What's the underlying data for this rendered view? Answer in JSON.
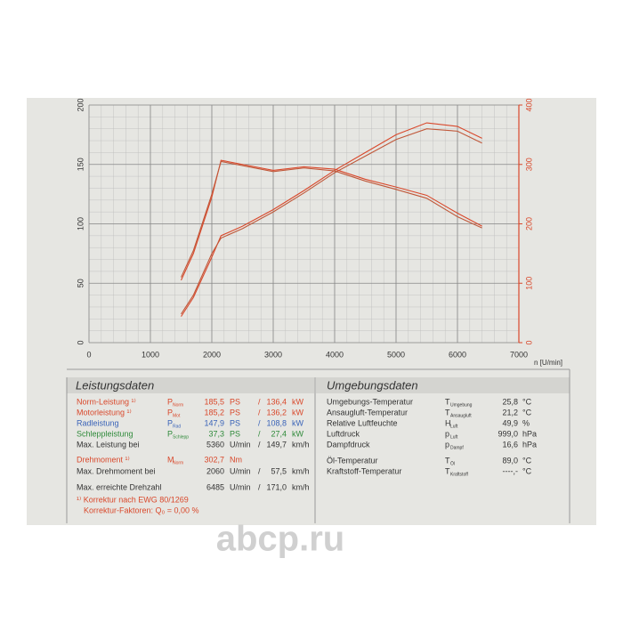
{
  "chart_data": {
    "type": "line",
    "x": [
      1500,
      1700,
      2000,
      2150,
      2500,
      3000,
      3500,
      4000,
      4500,
      5000,
      5500,
      6000,
      6400
    ],
    "series": [
      {
        "color": "#d9482b",
        "values": [
          22,
          38,
          72,
          90,
          98,
          112,
          128,
          145,
          160,
          175,
          185,
          182,
          172
        ]
      },
      {
        "color": "#c0583a",
        "values": [
          24,
          40,
          75,
          88,
          96,
          110,
          126,
          143,
          157,
          171,
          180,
          178,
          168
        ]
      },
      {
        "color": "#d9482b",
        "axis": "y2",
        "values": [
          105,
          150,
          245,
          307,
          300,
          290,
          296,
          292,
          275,
          262,
          248,
          218,
          196
        ]
      },
      {
        "color": "#c0583a",
        "axis": "y2",
        "values": [
          110,
          155,
          250,
          305,
          298,
          288,
          294,
          289,
          272,
          258,
          243,
          212,
          193
        ]
      }
    ],
    "x_label": "n [U/min]",
    "xlim": [
      0,
      7000
    ],
    "xticks": [
      0,
      1000,
      2000,
      3000,
      4000,
      5000,
      6000,
      7000
    ],
    "ylim": [
      0,
      200
    ],
    "yticks": [
      0,
      50,
      100,
      150,
      200
    ],
    "y2lim": [
      0,
      400
    ],
    "y2ticks": [
      0,
      100,
      200,
      300,
      400
    ],
    "y2_color": "#d9482b",
    "grid": true
  },
  "performance": {
    "title": "Leistungsdaten",
    "sep": "/",
    "rows": [
      {
        "label": "Norm-Leistung ¹⁾",
        "symbol": "P",
        "sub": "Norm",
        "value": "185,5",
        "unit": "PS",
        "value2": "136,4",
        "unit2": "kW",
        "color": "#d9482b"
      },
      {
        "label": "Motorleistung ¹⁾",
        "symbol": "P",
        "sub": "Mot",
        "value": "185,2",
        "unit": "PS",
        "value2": "136,2",
        "unit2": "kW",
        "color": "#d9482b"
      },
      {
        "label": "Radleistung",
        "symbol": "P",
        "sub": "Rad",
        "value": "147,9",
        "unit": "PS",
        "value2": "108,8",
        "unit2": "kW",
        "color": "#3a63b8"
      },
      {
        "label": "Schleppleistung",
        "symbol": "P",
        "sub": "Schlepp",
        "value": "37,3",
        "unit": "PS",
        "value2": "27,4",
        "unit2": "kW",
        "color": "#2f8a3a"
      },
      {
        "label": "Max. Leistung bei",
        "value": "5360",
        "unit": "U/min",
        "value2": "149,7",
        "unit2": "km/h",
        "color": "#333333"
      },
      {
        "label": "Drehmoment ¹⁾",
        "symbol": "M",
        "sub": "Norm",
        "value": "302,7",
        "unit": "Nm",
        "color": "#d9482b"
      },
      {
        "label": "Max. Drehmoment bei",
        "value": "2060",
        "unit": "U/min",
        "value2": "57,5",
        "unit2": "km/h",
        "color": "#333333"
      },
      {
        "label": "Max. erreichte Drehzahl",
        "value": "6485",
        "unit": "U/min",
        "value2": "171,0",
        "unit2": "km/h",
        "color": "#333333"
      }
    ],
    "notes": [
      "¹⁾ Korrektur nach EWG 80/1269",
      "Korrektur-Faktoren: Q₀ =  0,00 %"
    ]
  },
  "environment": {
    "title": "Umgebungsdaten",
    "rows": [
      {
        "label": "Umgebungs-Temperatur",
        "symbol": "T",
        "sub": "Umgebung",
        "value": "25,8",
        "unit": "°C"
      },
      {
        "label": "Ansaugluft-Temperatur",
        "symbol": "T",
        "sub": "Ansaugluft",
        "value": "21,2",
        "unit": "°C"
      },
      {
        "label": "Relative Luftfeuchte",
        "symbol": "H",
        "sub": "Luft",
        "value": "49,9",
        "unit": "%"
      },
      {
        "label": "Luftdruck",
        "symbol": "p",
        "sub": "Luft",
        "value": "999,0",
        "unit": "hPa"
      },
      {
        "label": "Dampfdruck",
        "symbol": "p",
        "sub": "Dampf",
        "value": "16,6",
        "unit": "hPa"
      },
      {
        "label": "Öl-Temperatur",
        "symbol": "T",
        "sub": "Öl",
        "value": "89,0",
        "unit": "°C"
      },
      {
        "label": "Kraftstoff-Temperatur",
        "symbol": "T",
        "sub": "Kraftstoff",
        "value": "----,-",
        "unit": "°C"
      }
    ]
  },
  "watermark": "abcp.ru"
}
